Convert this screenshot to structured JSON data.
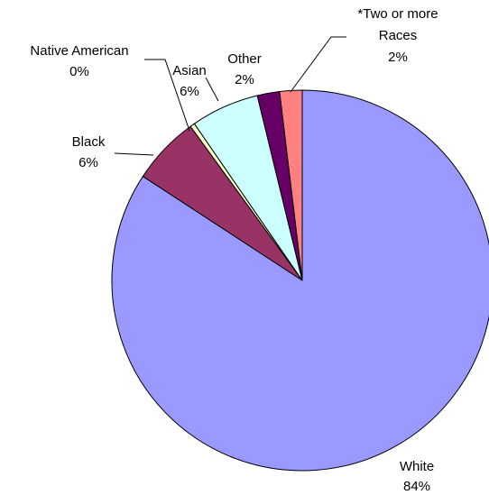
{
  "chart_data": {
    "type": "pie",
    "title": "",
    "slices": [
      {
        "name": "White",
        "label": "White",
        "percent_label": "84%",
        "value": 84.3,
        "color": "#9999ff"
      },
      {
        "name": "Black",
        "label": "Black",
        "percent_label": "6%",
        "value": 5.8,
        "color": "#993366"
      },
      {
        "name": "Native American",
        "label": "Native American",
        "percent_label": "0%",
        "value": 0.4,
        "color": "#ffffcc"
      },
      {
        "name": "Asian",
        "label": "Asian",
        "percent_label": "6%",
        "value": 5.8,
        "color": "#ccffff"
      },
      {
        "name": "Other",
        "label": "Other",
        "percent_label": "2%",
        "value": 1.9,
        "color": "#660066"
      },
      {
        "name": "*Two or more Races",
        "label_lines": [
          "*Two or more",
          "Races"
        ],
        "percent_label": "2%",
        "value": 1.9,
        "color": "#ff8080"
      }
    ],
    "legend": "none"
  }
}
